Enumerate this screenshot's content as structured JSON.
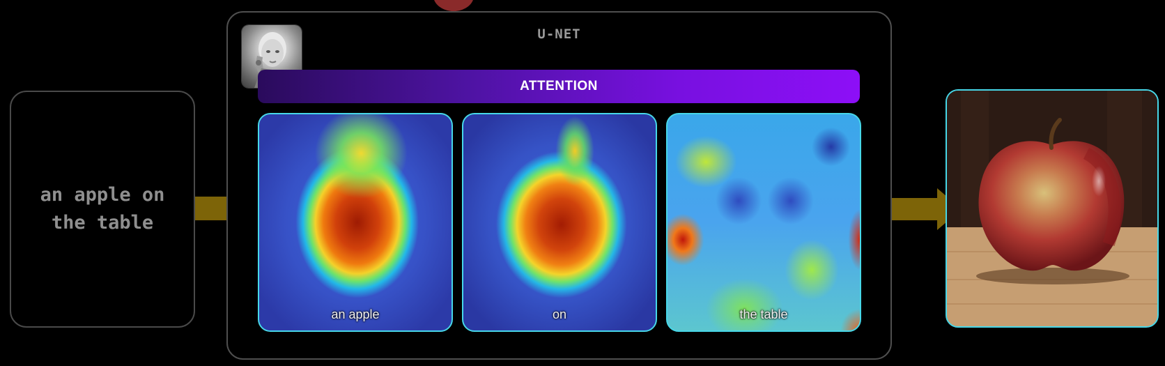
{
  "prompt": {
    "text": "an apple on\nthe table"
  },
  "unet": {
    "title": "U-NET"
  },
  "attention": {
    "label": "ATTENTION"
  },
  "heatmaps": [
    {
      "label": "an apple"
    },
    {
      "label": "on"
    },
    {
      "label": "the table"
    }
  ],
  "colors": {
    "panel_border": "#47d7e8",
    "arrow": "#7d6408",
    "attention_start": "#2a0b5c",
    "attention_end": "#8d0ff7"
  },
  "icons": {
    "avatar": "robot-avatar-icon",
    "output": "apple-photo"
  }
}
